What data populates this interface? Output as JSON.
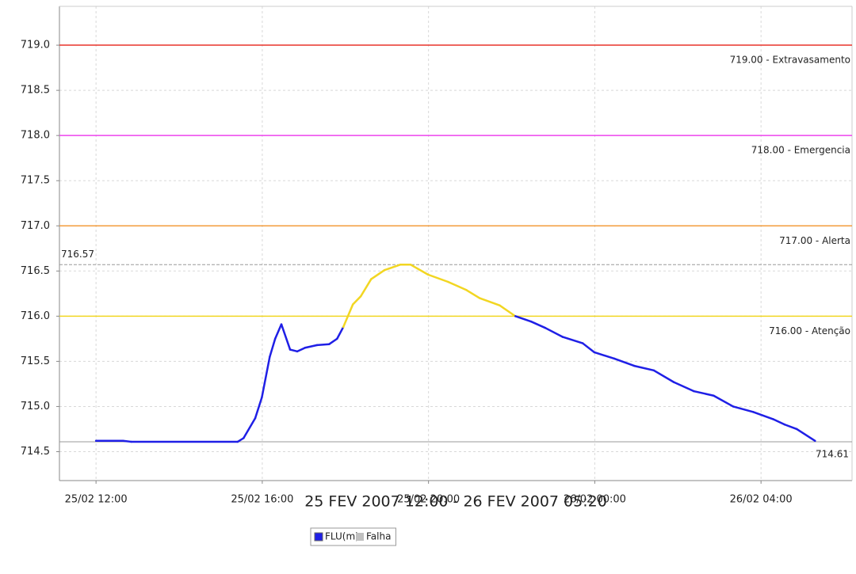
{
  "chart_data": {
    "type": "line",
    "title": "25 FEV 2007 12:00 - 26 FEV 2007 05:20",
    "x": [
      12.0,
      12.65,
      12.84,
      15.41,
      15.55,
      15.83,
      15.99,
      16.18,
      16.31,
      16.46,
      16.67,
      16.84,
      17.03,
      17.32,
      17.61,
      17.8,
      17.95,
      18.18,
      18.37,
      18.62,
      18.94,
      19.32,
      19.57,
      19.99,
      20.47,
      20.91,
      21.23,
      21.71,
      22.09,
      22.47,
      22.81,
      23.23,
      23.71,
      23.99,
      24.47,
      24.95,
      25.42,
      25.9,
      26.38,
      26.86,
      27.33,
      27.81,
      28.29,
      28.57,
      28.86,
      29.3
    ],
    "series": [
      {
        "name": "FLU(m)",
        "color": "#1f1fe6",
        "values": [
          714.62,
          714.62,
          714.61,
          714.61,
          714.65,
          714.87,
          715.1,
          715.55,
          715.75,
          715.91,
          715.63,
          715.61,
          715.65,
          715.68,
          715.69,
          715.75,
          715.88,
          716.13,
          716.22,
          716.41,
          716.51,
          716.57,
          716.57,
          716.46,
          716.38,
          716.29,
          716.2,
          716.12,
          716.0,
          715.94,
          715.87,
          715.77,
          715.7,
          715.6,
          715.53,
          715.45,
          715.4,
          715.27,
          715.17,
          715.12,
          715.0,
          714.94,
          714.86,
          714.8,
          714.75,
          714.62
        ]
      }
    ],
    "legend_extra": {
      "name": "Falha",
      "color": "#c0c0c0"
    },
    "thresholds": [
      {
        "value": 719,
        "label": "719.00 - Extravasamento",
        "color": "#e8342a"
      },
      {
        "value": 718,
        "label": "718.00 - Emergencia",
        "color": "#ee44ee"
      },
      {
        "value": 717,
        "label": "717.00 - Alerta",
        "color": "#f39c3c"
      },
      {
        "value": 716,
        "label": "716.00 - Atenção",
        "color": "#f2d622"
      }
    ],
    "max_line": {
      "value": 716.57,
      "color": "#999999"
    },
    "min_line": {
      "value": 714.61,
      "color": "#999999"
    },
    "xlim": [
      11.12,
      30.19
    ],
    "xticks": [
      {
        "value": 12,
        "label": "25/02 12:00"
      },
      {
        "value": 16,
        "label": "25/02 16:00"
      },
      {
        "value": 20,
        "label": "25/02 20:00"
      },
      {
        "value": 24,
        "label": "26/02 00:00"
      },
      {
        "value": 28,
        "label": "26/02 04:00"
      }
    ],
    "ylim": [
      714.18,
      719.43
    ],
    "yticks": [
      {
        "value": 714.5,
        "label": "714.5"
      },
      {
        "value": 715,
        "label": "715.0"
      },
      {
        "value": 715.5,
        "label": "715.5"
      },
      {
        "value": 716,
        "label": "716.0"
      },
      {
        "value": 716.5,
        "label": "716.5"
      },
      {
        "value": 717,
        "label": "717.0"
      },
      {
        "value": 717.5,
        "label": "717.5"
      },
      {
        "value": 718,
        "label": "718.0"
      },
      {
        "value": 718.5,
        "label": "718.5"
      },
      {
        "value": 719,
        "label": "719.0"
      }
    ],
    "grid": true
  }
}
